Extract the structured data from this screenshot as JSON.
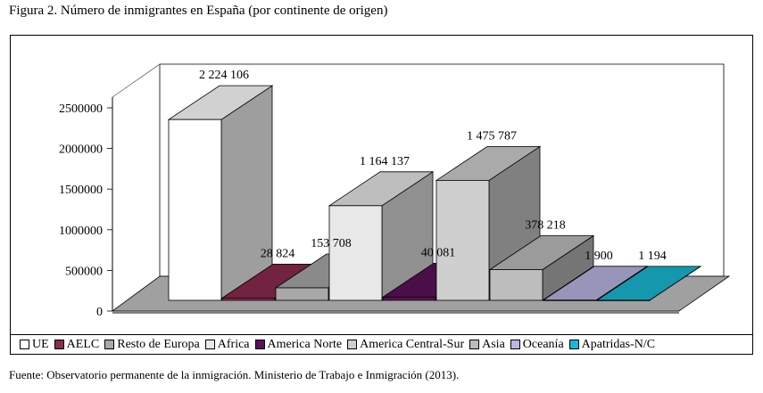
{
  "figure_title": "Figura 2. Número de inmigrantes en España (por continente de origen)",
  "source_note": "Fuente: Observatorio permanente de la inmigración. Ministerio de Trabajo e Inmigración (2013).",
  "chart_data": {
    "type": "bar",
    "style": "3d-column",
    "title": "Figura 2. Número de inmigrantes en España (por continente de origen)",
    "xlabel": "",
    "ylabel": "",
    "ylim": [
      0,
      2500000
    ],
    "y_ticks": [
      0,
      500000,
      1000000,
      1500000,
      2000000,
      2500000
    ],
    "y_tick_labels": [
      "0",
      "500000",
      "1000000",
      "1500000",
      "2000000",
      "2500000"
    ],
    "legend_position": "bottom",
    "categories": [
      "UE",
      "AELC",
      "Resto de Europa",
      "Africa",
      "America Norte",
      "America Central-Sur",
      "Asia",
      "Oceanía",
      "Apatridas-N/C"
    ],
    "values": [
      2224106,
      28824,
      153708,
      1164137,
      40081,
      1475787,
      378218,
      1900,
      1194
    ],
    "data_labels": [
      "2 224 106",
      "28 824",
      "153 708",
      "1 164 137",
      "40 081",
      "1 475 787",
      "378 218",
      "1 900",
      "1 194"
    ],
    "colors": [
      "#ffffff",
      "#8b2b4e",
      "#a8a8a8",
      "#e8e8e8",
      "#5a1258",
      "#cfcfcf",
      "#bdbdbd",
      "#b9b6e3",
      "#1ab8d4"
    ]
  }
}
